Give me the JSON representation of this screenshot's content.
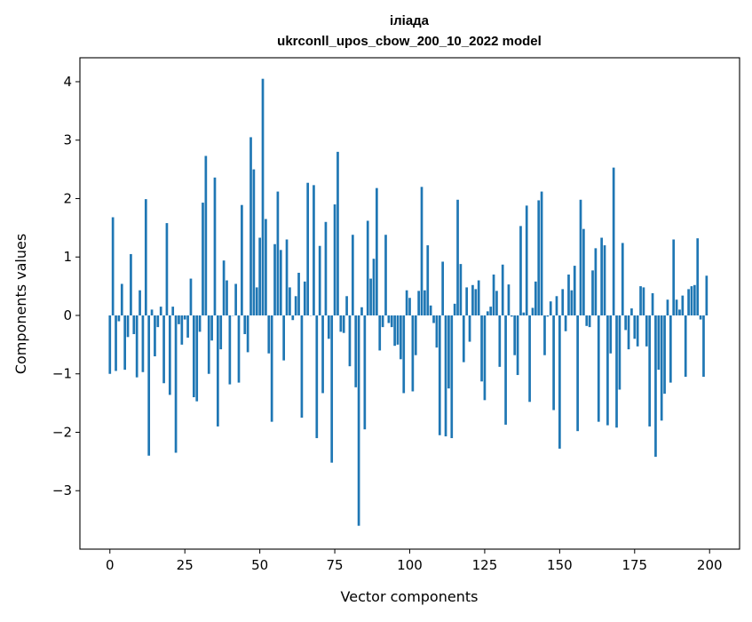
{
  "chart_data": {
    "type": "bar",
    "title": "іліада",
    "subtitle": "ukrconll_upos_cbow_200_10_2022 model",
    "xlabel": "Vector components",
    "ylabel": "Components values",
    "xlim": [
      -10,
      210
    ],
    "ylim": [
      -4.0,
      4.41
    ],
    "xticks": [
      0,
      25,
      50,
      75,
      100,
      125,
      150,
      175,
      200
    ],
    "xtick_labels": [
      "0",
      "25",
      "50",
      "75",
      "100",
      "125",
      "150",
      "175",
      "200"
    ],
    "yticks": [
      4,
      3,
      2,
      1,
      0,
      -1,
      -2,
      -3
    ],
    "ytick_labels": [
      "4",
      "3",
      "2",
      "1",
      "0",
      "−1",
      "−2",
      "−3"
    ],
    "grid": false,
    "bar_color": "#1f77b4",
    "values": [
      -1.0,
      1.68,
      -0.95,
      -0.1,
      0.54,
      -0.93,
      -0.37,
      1.05,
      -0.32,
      -1.06,
      0.43,
      -0.97,
      1.99,
      -2.4,
      0.1,
      -0.7,
      -0.2,
      0.15,
      -1.16,
      1.58,
      -1.36,
      0.15,
      -2.35,
      -0.15,
      -0.5,
      -0.07,
      -0.38,
      0.63,
      -1.4,
      -1.47,
      -0.28,
      1.93,
      2.73,
      -1.0,
      -0.43,
      2.36,
      -1.9,
      -0.58,
      0.94,
      0.6,
      -1.18,
      0.0,
      0.54,
      -1.15,
      1.89,
      -0.32,
      -0.63,
      3.05,
      2.5,
      0.48,
      1.33,
      4.05,
      1.65,
      -0.65,
      -1.82,
      1.22,
      2.12,
      1.12,
      -0.77,
      1.3,
      0.48,
      -0.08,
      0.33,
      0.73,
      -1.75,
      0.58,
      2.27,
      0.0,
      2.23,
      -2.1,
      1.19,
      -1.33,
      1.6,
      -0.4,
      -2.52,
      1.9,
      2.8,
      -0.28,
      -0.3,
      0.33,
      -0.87,
      1.38,
      -1.23,
      -3.6,
      0.14,
      -1.95,
      1.62,
      0.63,
      0.97,
      2.18,
      -0.6,
      -0.2,
      1.38,
      -0.13,
      -0.2,
      -0.52,
      -0.5,
      -0.75,
      -1.33,
      0.43,
      0.3,
      -1.3,
      -0.68,
      0.42,
      2.2,
      0.43,
      1.2,
      0.17,
      -0.13,
      -0.55,
      -2.05,
      0.92,
      -2.07,
      -1.25,
      -2.1,
      0.2,
      1.98,
      0.88,
      -0.8,
      0.48,
      -0.45,
      0.52,
      0.45,
      0.6,
      -1.13,
      -1.45,
      0.07,
      0.15,
      0.7,
      0.42,
      -0.88,
      0.87,
      -1.87,
      0.53,
      -0.02,
      -0.68,
      -1.02,
      1.53,
      0.05,
      1.88,
      -1.48,
      0.13,
      0.58,
      1.97,
      2.12,
      -0.68,
      -0.02,
      0.24,
      -1.62,
      0.33,
      -2.28,
      0.45,
      -0.27,
      0.7,
      0.43,
      0.85,
      -1.98,
      1.98,
      1.48,
      -0.18,
      -0.2,
      0.77,
      1.15,
      -1.82,
      1.33,
      1.2,
      -1.88,
      -0.65,
      2.53,
      -1.92,
      -1.27,
      1.24,
      -0.25,
      -0.58,
      0.12,
      -0.4,
      -0.53,
      0.5,
      0.48,
      -0.53,
      -1.9,
      0.38,
      -2.42,
      -0.93,
      -1.8,
      -1.34,
      0.27,
      -1.15,
      1.3,
      0.27,
      0.1,
      0.34,
      -1.05,
      0.45,
      0.5,
      0.52,
      1.32,
      -0.07,
      -1.05,
      0.68
    ]
  }
}
